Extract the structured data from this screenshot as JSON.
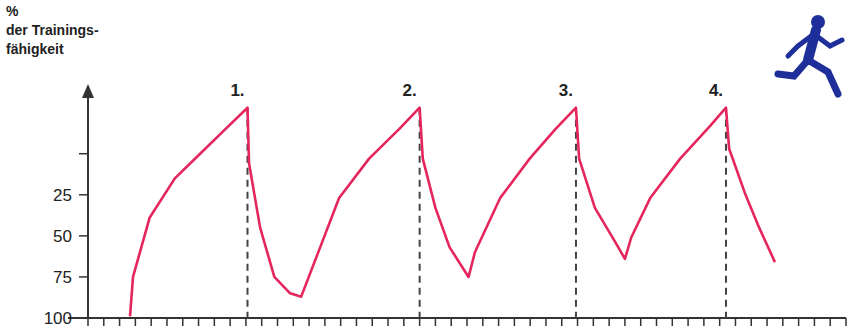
{
  "chart_data": {
    "type": "line",
    "y_label": [
      "%",
      "der Trainings-",
      "fähigkeit"
    ],
    "x": [
      2.66,
      2.85,
      3.9,
      5.5,
      7.1,
      8.7,
      10.1,
      10.2,
      10.9,
      11.8,
      12.8,
      13.5,
      14.7,
      15.9,
      17.8,
      19.7,
      21.0,
      21.2,
      22.0,
      22.9,
      24.1,
      24.5,
      26.1,
      27.97,
      29.6,
      30.9,
      31.1,
      32.1,
      33.4,
      34.0,
      34.4,
      35.6,
      37.5,
      39.4,
      40.4,
      40.6,
      41.6,
      42.5,
      43.5
    ],
    "values": [
      99,
      75,
      39,
      15,
      0,
      -15,
      -28,
      6,
      45,
      75,
      85,
      87,
      57,
      27,
      3,
      -15,
      -28,
      3,
      33,
      57,
      75,
      60,
      27,
      3,
      -15,
      -28,
      3,
      33,
      54,
      64,
      51,
      27,
      3,
      -17,
      -28,
      -3,
      24,
      45,
      66
    ],
    "color": "#e5265c",
    "xlim": [
      0,
      48
    ],
    "xticks": [
      0,
      1,
      2,
      3,
      4,
      5,
      6,
      7,
      8,
      9,
      10,
      11,
      12,
      13,
      14,
      15,
      16,
      17,
      18,
      19,
      20,
      21,
      22,
      23,
      24,
      25,
      26,
      27,
      28,
      29,
      30,
      31,
      32,
      33,
      34,
      35,
      36,
      37,
      38,
      39,
      40,
      41,
      42,
      43,
      44,
      45,
      46,
      47,
      48
    ],
    "ylim": [
      100,
      -40
    ],
    "yticks": [
      100,
      75,
      50,
      25,
      {
        "value": 0,
        "label": null
      }
    ],
    "tick_labels": "y",
    "grid": false,
    "annotations": [
      {
        "x": 10.1,
        "y": -28,
        "text": "1."
      },
      {
        "x": 21.0,
        "y": -28,
        "text": "2."
      },
      {
        "x": 30.9,
        "y": -28,
        "text": "3."
      },
      {
        "x": 40.4,
        "y": -28,
        "text": "4."
      }
    ]
  }
}
